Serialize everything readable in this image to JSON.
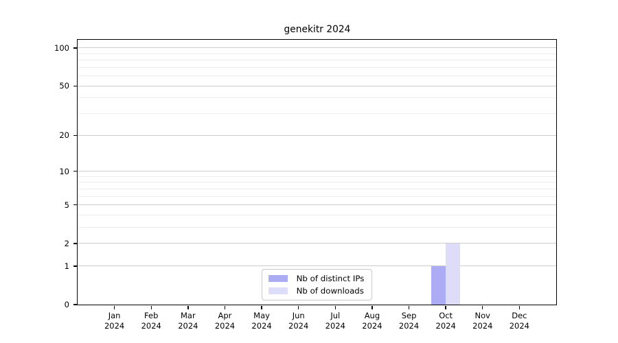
{
  "chart_data": {
    "type": "bar",
    "title": "genekitr 2024",
    "categories": [
      "Jan 2024",
      "Feb 2024",
      "Mar 2024",
      "Apr 2024",
      "May 2024",
      "Jun 2024",
      "Jul 2024",
      "Aug 2024",
      "Sep 2024",
      "Oct 2024",
      "Nov 2024",
      "Dec 2024"
    ],
    "series": [
      {
        "name": "Nb of distinct IPs",
        "color": "#acacf5",
        "values": [
          0,
          0,
          0,
          0,
          0,
          0,
          0,
          0,
          0,
          1,
          0,
          0
        ]
      },
      {
        "name": "Nb of downloads",
        "color": "#ddddfa",
        "values": [
          0,
          0,
          0,
          0,
          0,
          0,
          0,
          0,
          0,
          2,
          0,
          0
        ]
      }
    ],
    "xlabel": "",
    "ylabel": "",
    "yscale": "log1p",
    "ylim": [
      0,
      116
    ],
    "yticks": [
      0,
      1,
      2,
      5,
      10,
      20,
      50,
      100
    ],
    "ytick_labels": [
      "0",
      "1",
      "2",
      "5",
      "10",
      "20",
      "50",
      "100"
    ],
    "minor_gridlines": [
      3,
      4,
      6,
      7,
      8,
      9,
      30,
      40,
      60,
      70,
      80,
      90
    ],
    "grid": "horizontal",
    "legend": {
      "position": "lower center"
    },
    "colors": {
      "major_grid": "#cccccc",
      "minor_grid": "#ececec",
      "spine": "#000000",
      "text": "#000000",
      "background": "#ffffff"
    }
  }
}
